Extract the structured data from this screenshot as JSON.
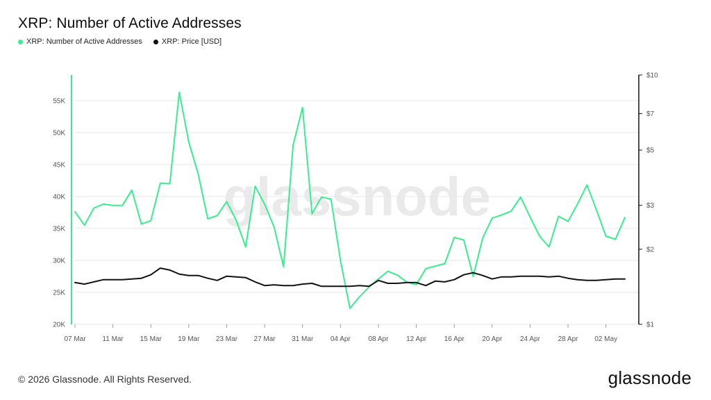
{
  "header": {
    "title": "XRP: Number of Active Addresses"
  },
  "legend": [
    {
      "label": "XRP: Number of Active Addresses",
      "color": "#34f08c"
    },
    {
      "label": "XRP: Price [USD]",
      "color": "#111111"
    }
  ],
  "watermark": "glassnode",
  "footer": {
    "copyright": "© 2026 Glassnode. All Rights Reserved.",
    "logo": "glassnode"
  },
  "chart_data": {
    "type": "line",
    "title": "XRP: Number of Active Addresses",
    "x_tick_labels": [
      "07 Mar",
      "11 Mar",
      "15 Mar",
      "19 Mar",
      "23 Mar",
      "27 Mar",
      "31 Mar",
      "04 Apr",
      "08 Apr",
      "12 Apr",
      "16 Apr",
      "20 Apr",
      "24 Apr",
      "28 Apr",
      "02 May"
    ],
    "y_left": {
      "ticks": [
        "20K",
        "25K",
        "30K",
        "35K",
        "40K",
        "45K",
        "50K",
        "55K"
      ],
      "tick_values": [
        20000,
        25000,
        30000,
        35000,
        40000,
        45000,
        50000,
        55000
      ],
      "range": [
        20000,
        59000
      ]
    },
    "y_right": {
      "scale": "log",
      "ticks": [
        "$1",
        "$2",
        "$3",
        "$5",
        "$7",
        "$10"
      ],
      "tick_values": [
        1,
        2,
        3,
        5,
        7,
        10
      ],
      "range": [
        1,
        10
      ]
    },
    "grid": "horizontal",
    "series": [
      {
        "name": "XRP: Number of Active Addresses",
        "axis": "left",
        "color": "#34f08c",
        "values": [
          37600,
          35500,
          38200,
          38800,
          38600,
          38600,
          41000,
          35700,
          36200,
          42100,
          42000,
          56300,
          48500,
          43500,
          36500,
          37000,
          39200,
          36300,
          32100,
          41600,
          38800,
          35200,
          29000,
          48000,
          53900,
          37300,
          39900,
          39600,
          30000,
          22500,
          24300,
          25800,
          27100,
          28300,
          27700,
          26600,
          26200,
          28700,
          29100,
          29500,
          33600,
          33200,
          27500,
          33500,
          36600,
          37100,
          37700,
          39900,
          36800,
          33800,
          32100,
          36900,
          36100,
          38800,
          41800,
          37900,
          33800,
          33300,
          36700
        ]
      },
      {
        "name": "XRP: Price [USD]",
        "axis": "right",
        "color": "#111111",
        "values": [
          1.47,
          1.45,
          1.48,
          1.51,
          1.51,
          1.51,
          1.52,
          1.53,
          1.58,
          1.68,
          1.65,
          1.59,
          1.57,
          1.57,
          1.53,
          1.5,
          1.56,
          1.55,
          1.54,
          1.48,
          1.43,
          1.44,
          1.43,
          1.43,
          1.45,
          1.46,
          1.42,
          1.42,
          1.42,
          1.42,
          1.43,
          1.42,
          1.5,
          1.46,
          1.46,
          1.47,
          1.47,
          1.43,
          1.49,
          1.48,
          1.51,
          1.58,
          1.61,
          1.57,
          1.52,
          1.55,
          1.55,
          1.56,
          1.56,
          1.56,
          1.55,
          1.56,
          1.53,
          1.51,
          1.5,
          1.5,
          1.51,
          1.52,
          1.52
        ]
      }
    ]
  }
}
